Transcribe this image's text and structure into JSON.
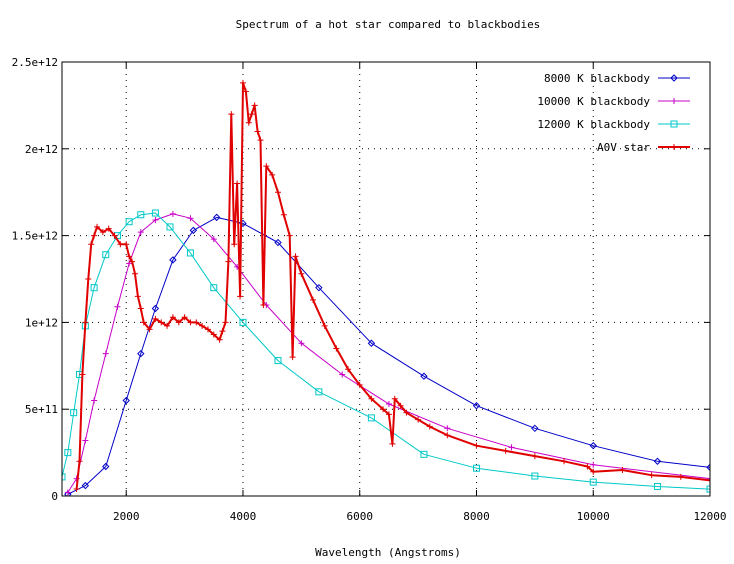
{
  "chart_data": {
    "type": "line",
    "title": "Spectrum of a hot star compared to blackbodies",
    "xlabel": "Wavelength (Angstroms)",
    "ylabel": "",
    "xlim": [
      900,
      12000
    ],
    "ylim": [
      0,
      2500000000000
    ],
    "x_ticks": [
      2000,
      4000,
      6000,
      8000,
      10000,
      12000
    ],
    "x_tick_labels": [
      "2000",
      "4000",
      "6000",
      "8000",
      "10000",
      "12000"
    ],
    "y_ticks": [
      0,
      500000000000,
      1000000000000,
      1500000000000,
      2000000000000,
      2500000000000
    ],
    "y_tick_labels": [
      "0",
      "5e+11",
      "1e+12",
      "1.5e+12",
      "2e+12",
      "2.5e+12"
    ],
    "grid": true,
    "legend_position": "top-right",
    "series": [
      {
        "name": "8000 K blackbody",
        "color": "#0000c8",
        "marker": "diamond",
        "x": [
          1000,
          1300,
          1650,
          2000,
          2250,
          2500,
          2800,
          3150,
          3550,
          4000,
          4600,
          5300,
          6200,
          7100,
          8000,
          9000,
          10000,
          11100,
          12000
        ],
        "y": [
          10000000000,
          60000000000,
          170000000000,
          550000000000,
          820000000000,
          1080000000000,
          1360000000000,
          1530000000000,
          1605000000000,
          1570000000000,
          1460000000000,
          1200000000000,
          880000000000,
          690000000000,
          520000000000,
          390000000000,
          290000000000,
          200000000000,
          165000000000
        ]
      },
      {
        "name": "10000 K blackbody",
        "color": "#c800c8",
        "marker": "plus",
        "x": [
          1000,
          1150,
          1300,
          1450,
          1650,
          1850,
          2050,
          2250,
          2500,
          2800,
          3100,
          3500,
          3900,
          4400,
          5000,
          5700,
          6500,
          7500,
          8600,
          10000,
          12000
        ],
        "y": [
          20000000000,
          100000000000,
          320000000000,
          550000000000,
          820000000000,
          1090000000000,
          1340000000000,
          1520000000000,
          1590000000000,
          1625000000000,
          1600000000000,
          1480000000000,
          1320000000000,
          1100000000000,
          880000000000,
          700000000000,
          530000000000,
          390000000000,
          280000000000,
          180000000000,
          100000000000
        ]
      },
      {
        "name": "12000 K blackbody",
        "color": "#00c8c8",
        "marker": "square",
        "x": [
          900,
          1000,
          1100,
          1200,
          1300,
          1450,
          1650,
          1850,
          2050,
          2250,
          2500,
          2750,
          3100,
          3500,
          4000,
          4600,
          5300,
          6200,
          7100,
          8000,
          9000,
          10000,
          11100,
          12000
        ],
        "y": [
          110000000000,
          250000000000,
          480000000000,
          700000000000,
          980000000000,
          1200000000000,
          1390000000000,
          1500000000000,
          1580000000000,
          1620000000000,
          1630000000000,
          1550000000000,
          1400000000000,
          1200000000000,
          1000000000000,
          780000000000,
          600000000000,
          450000000000,
          240000000000,
          160000000000,
          115000000000,
          80000000000,
          55000000000,
          40000000000
        ]
      },
      {
        "name": "A0V star",
        "color": "#e00000",
        "marker": "plus",
        "x": [
          1150,
          1200,
          1250,
          1300,
          1350,
          1400,
          1450,
          1500,
          1600,
          1700,
          1800,
          1900,
          2000,
          2050,
          2100,
          2150,
          2200,
          2250,
          2300,
          2400,
          2500,
          2600,
          2700,
          2800,
          2900,
          3000,
          3100,
          3200,
          3300,
          3400,
          3500,
          3600,
          3650,
          3700,
          3750,
          3800,
          3850,
          3900,
          3950,
          4000,
          4050,
          4100,
          4150,
          4200,
          4250,
          4300,
          4350,
          4400,
          4500,
          4600,
          4700,
          4800,
          4850,
          4900,
          5000,
          5200,
          5400,
          5600,
          5800,
          6000,
          6200,
          6400,
          6500,
          6560,
          6600,
          6700,
          6800,
          7000,
          7200,
          7500,
          8000,
          8500,
          9000,
          9500,
          9900,
          10000,
          10500,
          11000,
          11500,
          12000
        ],
        "y": [
          40000000000,
          200000000000,
          700000000000,
          1000000000000,
          1250000000000,
          1450000000000,
          1500000000000,
          1550000000000,
          1520000000000,
          1540000000000,
          1500000000000,
          1450000000000,
          1450000000000,
          1380000000000,
          1350000000000,
          1280000000000,
          1150000000000,
          1080000000000,
          1000000000000,
          960000000000,
          1020000000000,
          1000000000000,
          980000000000,
          1030000000000,
          1000000000000,
          1030000000000,
          1000000000000,
          1000000000000,
          980000000000,
          960000000000,
          930000000000,
          900000000000,
          950000000000,
          1000000000000,
          1350000000000,
          2200000000000,
          1450000000000,
          1800000000000,
          1150000000000,
          2380000000000,
          2330000000000,
          2150000000000,
          2200000000000,
          2250000000000,
          2100000000000,
          2050000000000,
          1100000000000,
          1900000000000,
          1850000000000,
          1750000000000,
          1620000000000,
          1500000000000,
          800000000000,
          1380000000000,
          1280000000000,
          1130000000000,
          980000000000,
          850000000000,
          730000000000,
          640000000000,
          560000000000,
          500000000000,
          470000000000,
          300000000000,
          560000000000,
          520000000000,
          480000000000,
          440000000000,
          400000000000,
          350000000000,
          290000000000,
          260000000000,
          230000000000,
          200000000000,
          170000000000,
          140000000000,
          150000000000,
          120000000000,
          110000000000,
          90000000000
        ]
      }
    ]
  }
}
